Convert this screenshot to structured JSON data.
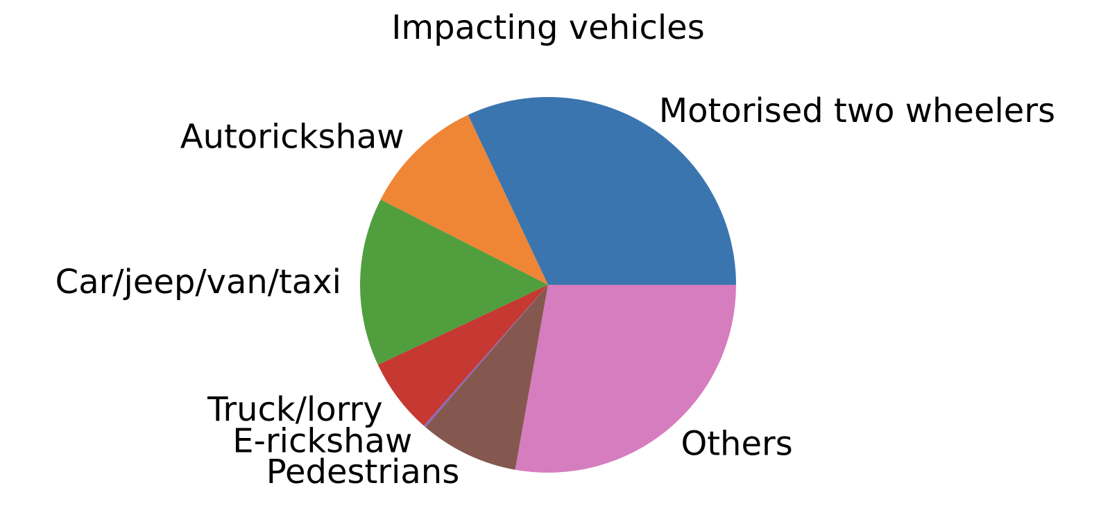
{
  "chart_data": {
    "type": "pie",
    "title": "Impacting vehicles",
    "slices": [
      {
        "label": "Motorised two wheelers",
        "value": 32.0,
        "color": "#3b75af"
      },
      {
        "label": "Autorickshaw",
        "value": 10.5,
        "color": "#ef8636"
      },
      {
        "label": "Car/jeep/van/taxi",
        "value": 14.5,
        "color": "#519e3e"
      },
      {
        "label": "Truck/lorry",
        "value": 6.5,
        "color": "#c53932"
      },
      {
        "label": "E-rickshaw",
        "value": 0.2,
        "color": "#8d69b8"
      },
      {
        "label": "Pedestrians",
        "value": 8.5,
        "color": "#84584e"
      },
      {
        "label": "Others",
        "value": 27.8,
        "color": "#d57dbe"
      }
    ],
    "start_angle_deg": 0,
    "direction": "counterclockwise"
  }
}
